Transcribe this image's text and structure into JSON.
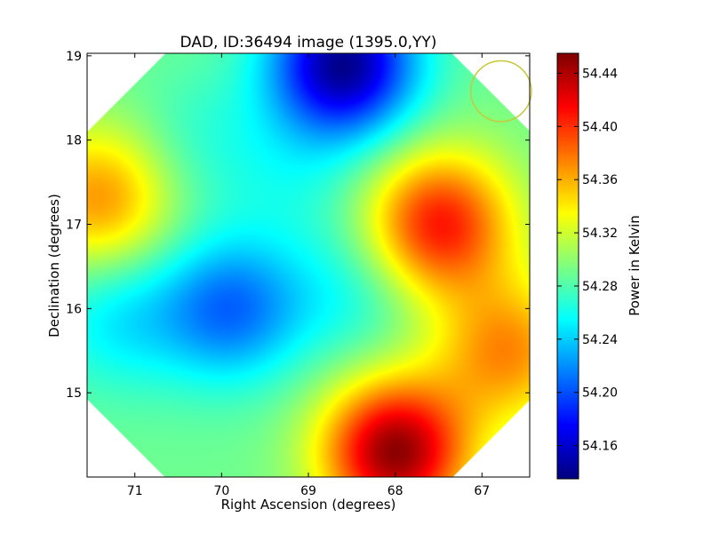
{
  "chart_data": {
    "type": "heatmap",
    "title": "DAD, ID:36494 image (1395.0,YY)",
    "xlabel": "Right Ascension (degrees)",
    "ylabel": "Declination (degrees)",
    "colorbar_label": "Power in Kelvin",
    "colormap": "jet",
    "xlim": [
      71.55,
      66.45
    ],
    "ylim": [
      14.0,
      19.03
    ],
    "x_ticks": [
      {
        "value": 71,
        "label": "71"
      },
      {
        "value": 70,
        "label": "70"
      },
      {
        "value": 69,
        "label": "69"
      },
      {
        "value": 68,
        "label": "68"
      },
      {
        "value": 67,
        "label": "67"
      }
    ],
    "y_ticks": [
      {
        "value": 15,
        "label": "15"
      },
      {
        "value": 16,
        "label": "16"
      },
      {
        "value": 17,
        "label": "17"
      },
      {
        "value": 18,
        "label": "18"
      },
      {
        "value": 19,
        "label": "19"
      }
    ],
    "colorbar_range": [
      54.135,
      54.455
    ],
    "colorbar_ticks": [
      {
        "value": 54.16,
        "label": "54.16"
      },
      {
        "value": 54.2,
        "label": "54.20"
      },
      {
        "value": 54.24,
        "label": "54.24"
      },
      {
        "value": 54.28,
        "label": "54.28"
      },
      {
        "value": 54.32,
        "label": "54.32"
      },
      {
        "value": 54.36,
        "label": "54.36"
      },
      {
        "value": 54.4,
        "label": "54.40"
      },
      {
        "value": 54.44,
        "label": "54.44"
      }
    ],
    "field_footprint": "octagon",
    "baseline_kelvin": 54.29,
    "features": [
      {
        "kind": "min",
        "ra": 68.6,
        "dec": 18.9,
        "value": 54.14
      },
      {
        "kind": "min",
        "ra": 69.9,
        "dec": 16.0,
        "value": 54.21
      },
      {
        "kind": "min",
        "ra": 68.5,
        "dec": 16.2,
        "value": 54.26
      },
      {
        "kind": "min",
        "ra": 70.3,
        "dec": 18.0,
        "value": 54.27
      },
      {
        "kind": "min",
        "ra": 71.2,
        "dec": 15.9,
        "value": 54.25
      },
      {
        "kind": "min",
        "ra": 69.2,
        "dec": 17.6,
        "value": 54.27
      },
      {
        "kind": "max",
        "ra": 68.0,
        "dec": 14.3,
        "value": 54.45
      },
      {
        "kind": "max",
        "ra": 67.5,
        "dec": 17.0,
        "value": 54.41
      },
      {
        "kind": "max",
        "ra": 71.4,
        "dec": 17.3,
        "value": 54.37
      },
      {
        "kind": "max",
        "ra": 66.7,
        "dec": 15.5,
        "value": 54.37
      }
    ],
    "beam_circle": {
      "ra": 66.78,
      "dec": 18.58,
      "radius_deg": 0.36,
      "color": "#c8c83a"
    }
  }
}
